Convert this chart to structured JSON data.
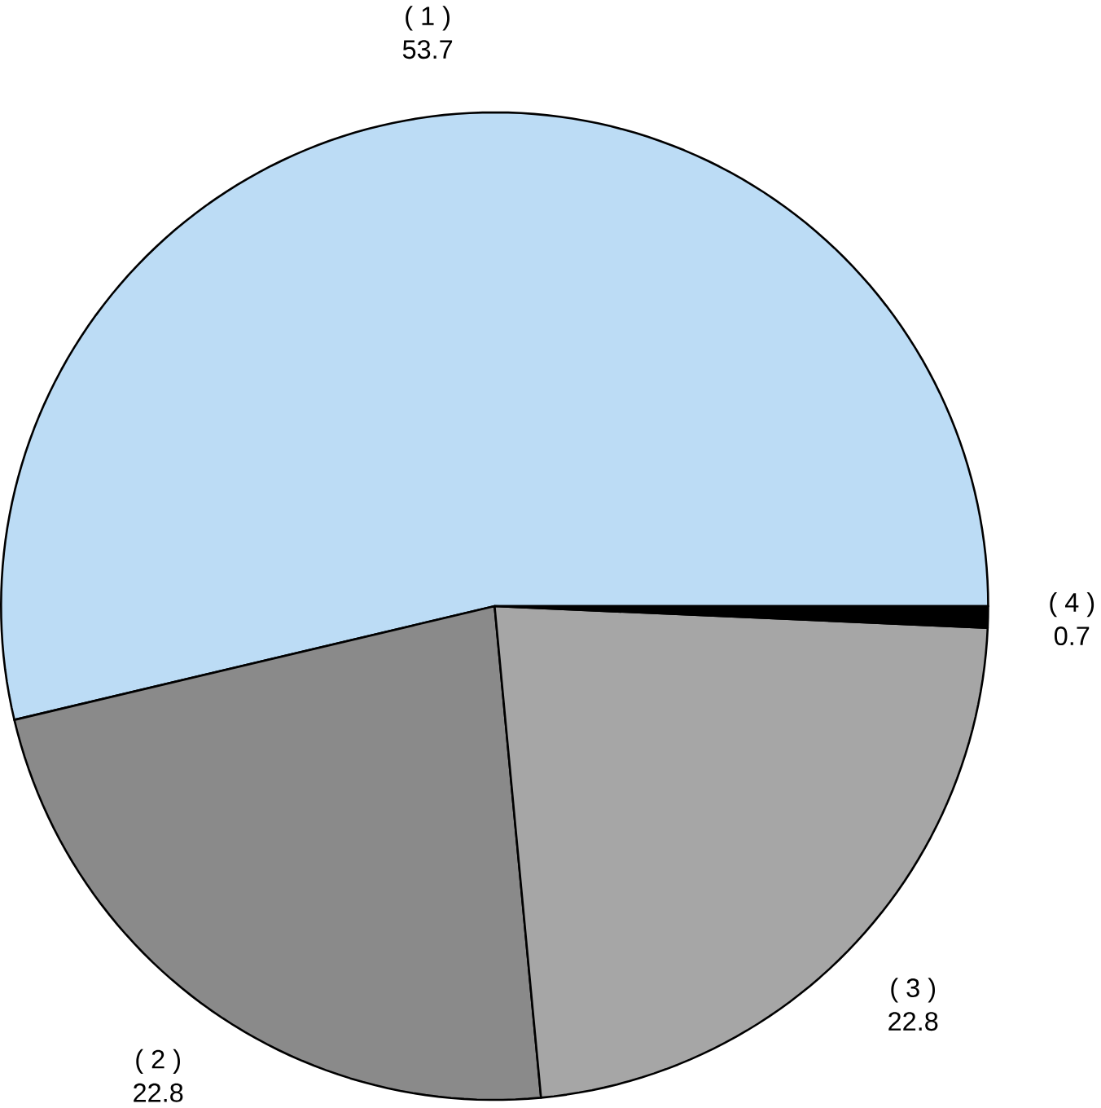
{
  "chart_data": {
    "type": "pie",
    "categories": [
      "( 1 )",
      "( 2 )",
      "( 3 )",
      "( 4 )"
    ],
    "values": [
      53.7,
      22.8,
      22.8,
      0.7
    ],
    "colors": [
      "#bcdcf5",
      "#8a8a8a",
      "#a6a6a6",
      "#000000"
    ],
    "data_labels": true
  }
}
